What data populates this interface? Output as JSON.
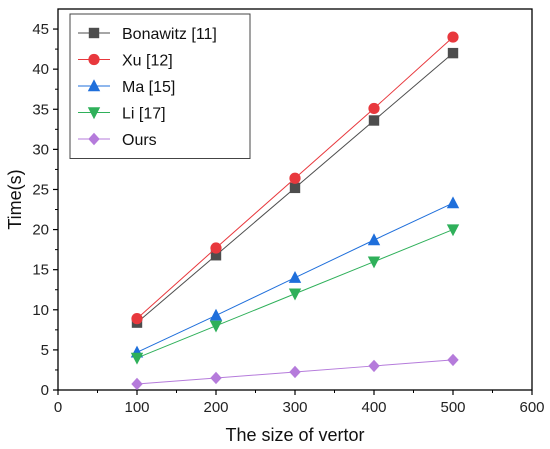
{
  "chart_data": {
    "type": "line",
    "title": "",
    "xlabel": "The size of vertor",
    "ylabel": "Time(s)",
    "xlim": [
      0,
      600
    ],
    "ylim": [
      0,
      47.5
    ],
    "xticks": [
      0,
      100,
      200,
      300,
      400,
      500,
      600
    ],
    "yticks": [
      0,
      5,
      10,
      15,
      20,
      25,
      30,
      35,
      40,
      45
    ],
    "grid": false,
    "legend_position": "top-left",
    "x": [
      100,
      200,
      300,
      400,
      500
    ],
    "series": [
      {
        "name": "Bonawitz [11]",
        "color": "#4d4d4d",
        "marker": "square",
        "values": [
          8.4,
          16.8,
          25.2,
          33.6,
          42.0
        ]
      },
      {
        "name": "Xu [12]",
        "color": "#e8383d",
        "marker": "circle",
        "values": [
          8.9,
          17.7,
          26.4,
          35.1,
          44.0
        ]
      },
      {
        "name": "Ma [15]",
        "color": "#1f6fdb",
        "marker": "triangle-up",
        "values": [
          4.7,
          9.3,
          14.0,
          18.7,
          23.3
        ]
      },
      {
        "name": "Li [17]",
        "color": "#2fb05a",
        "marker": "triangle-down",
        "values": [
          4.0,
          8.0,
          12.0,
          16.0,
          20.0
        ]
      },
      {
        "name": "Ours",
        "color": "#b57bdb",
        "marker": "diamond",
        "values": [
          0.75,
          1.5,
          2.25,
          3.0,
          3.75
        ]
      }
    ]
  }
}
